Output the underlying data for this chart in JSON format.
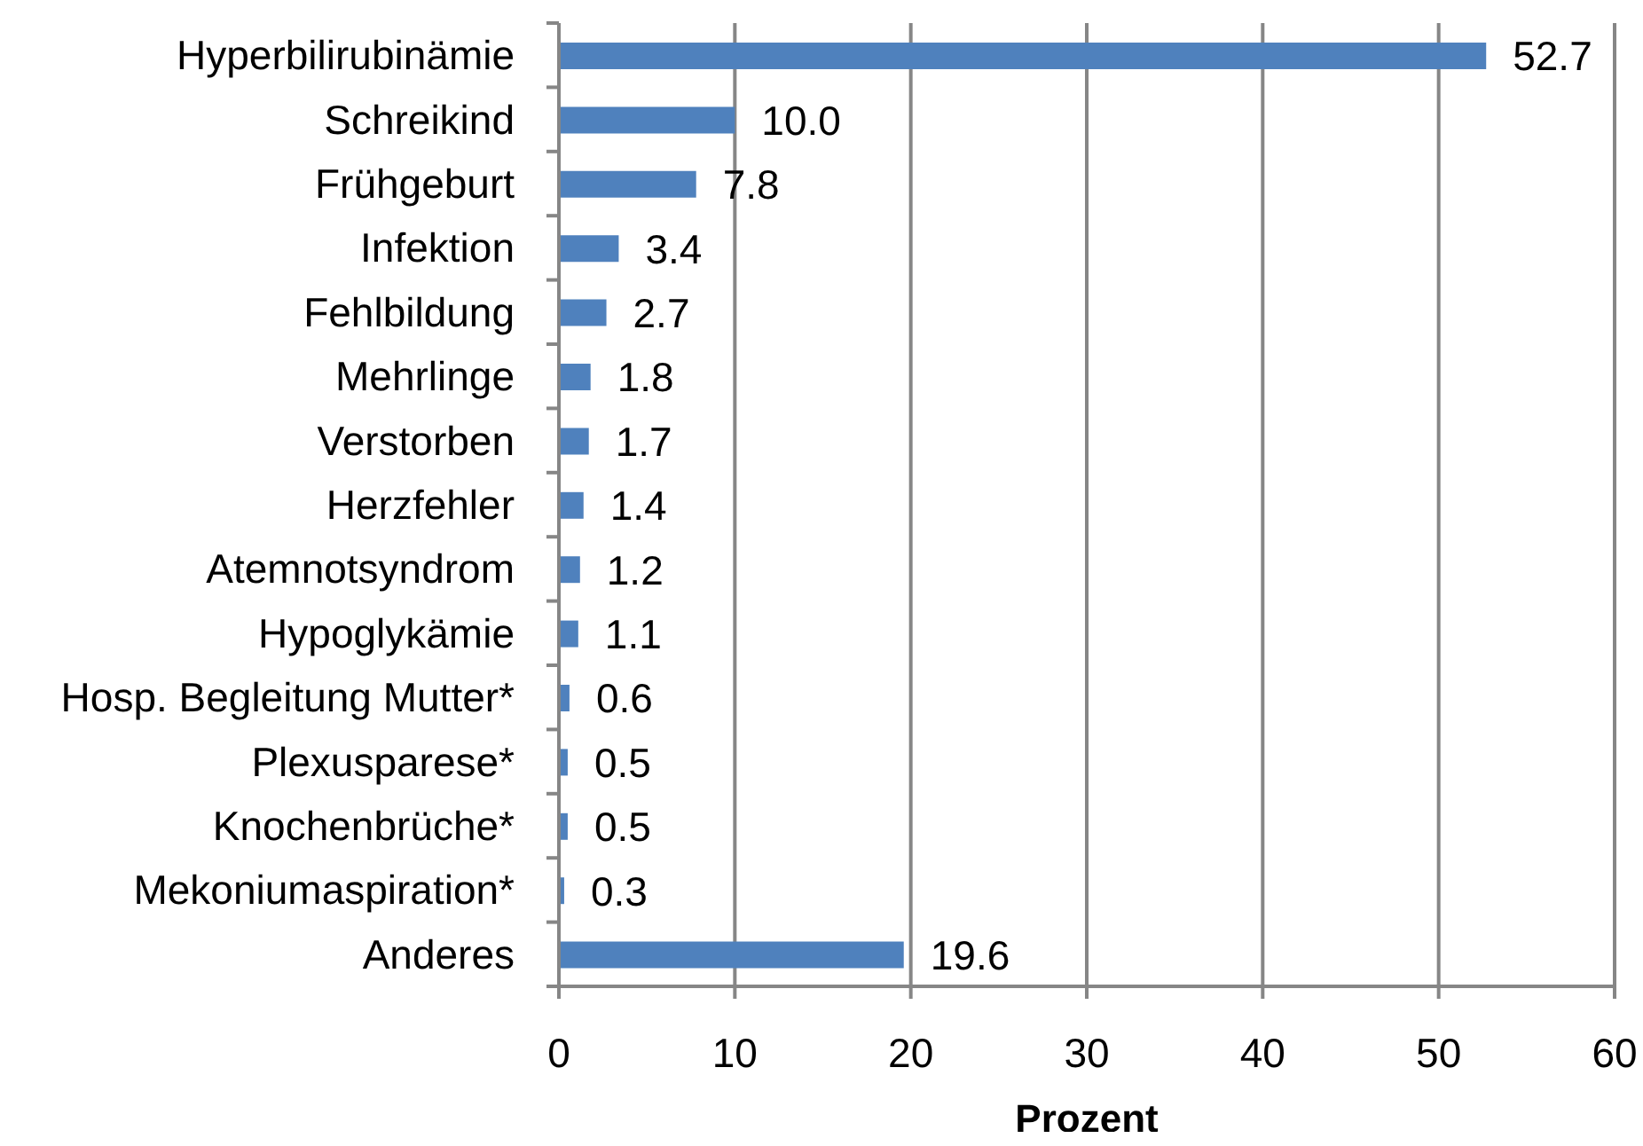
{
  "chart_data": {
    "type": "bar",
    "orientation": "horizontal",
    "categories": [
      "Hyperbilirubinämie",
      "Schreikind",
      "Frühgeburt",
      "Infektion",
      "Fehlbildung",
      "Mehrlinge",
      "Verstorben",
      "Herzfehler",
      "Atemnotsyndrom",
      "Hypoglykämie",
      "Hosp. Begleitung Mutter*",
      "Plexusparese*",
      "Knochenbrüche*",
      "Mekoniumaspiration*",
      "Anderes"
    ],
    "values": [
      52.7,
      10.0,
      7.8,
      3.4,
      2.7,
      1.8,
      1.7,
      1.4,
      1.2,
      1.1,
      0.6,
      0.5,
      0.5,
      0.3,
      19.6
    ],
    "value_labels": [
      "52.7",
      "10.0",
      "7.8",
      "3.4",
      "2.7",
      "1.8",
      "1.7",
      "1.4",
      "1.2",
      "1.1",
      "0.6",
      "0.5",
      "0.5",
      "0.3",
      "19.6"
    ],
    "color": "#4f81bd",
    "xlim": [
      0,
      60
    ],
    "xticks": [
      0,
      10,
      20,
      30,
      40,
      50,
      60
    ],
    "xlabel": "Prozent",
    "grid": "x"
  }
}
